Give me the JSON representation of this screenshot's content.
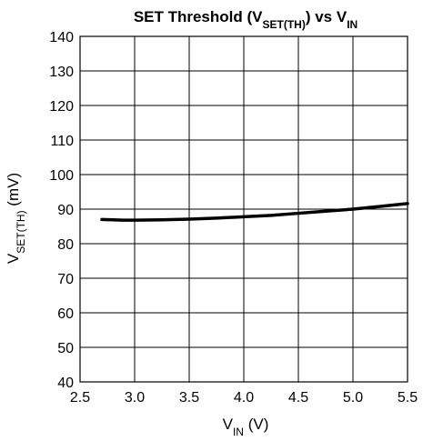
{
  "chart_data": {
    "type": "line",
    "title": {
      "parts": [
        {
          "text": "SET Threshold (V",
          "sub": false
        },
        {
          "text": "SET(TH)",
          "sub": true
        },
        {
          "text": ") vs V",
          "sub": false
        },
        {
          "text": "IN",
          "sub": true
        }
      ]
    },
    "xlabel": {
      "parts": [
        {
          "text": "V",
          "sub": false
        },
        {
          "text": "IN",
          "sub": true
        },
        {
          "text": " (V)",
          "sub": false
        }
      ]
    },
    "ylabel": {
      "parts": [
        {
          "text": "V",
          "sub": false
        },
        {
          "text": "SET(TH)",
          "sub": true
        },
        {
          "text": " (mV)",
          "sub": false
        }
      ]
    },
    "xlim": [
      2.5,
      5.5
    ],
    "ylim": [
      40,
      140
    ],
    "xticks": [
      "2.5",
      "3.0",
      "3.5",
      "4.0",
      "4.5",
      "5.0",
      "5.5"
    ],
    "yticks": [
      "40",
      "50",
      "60",
      "70",
      "80",
      "90",
      "100",
      "110",
      "120",
      "130",
      "140"
    ],
    "grid": true,
    "series": [
      {
        "x": [
          2.7,
          2.9,
          3.0,
          3.25,
          3.5,
          3.75,
          4.0,
          4.25,
          4.5,
          4.75,
          5.0,
          5.25,
          5.5
        ],
        "y": [
          87.0,
          86.8,
          86.8,
          86.9,
          87.1,
          87.4,
          87.8,
          88.2,
          88.8,
          89.4,
          90.0,
          90.8,
          91.6
        ]
      }
    ]
  }
}
